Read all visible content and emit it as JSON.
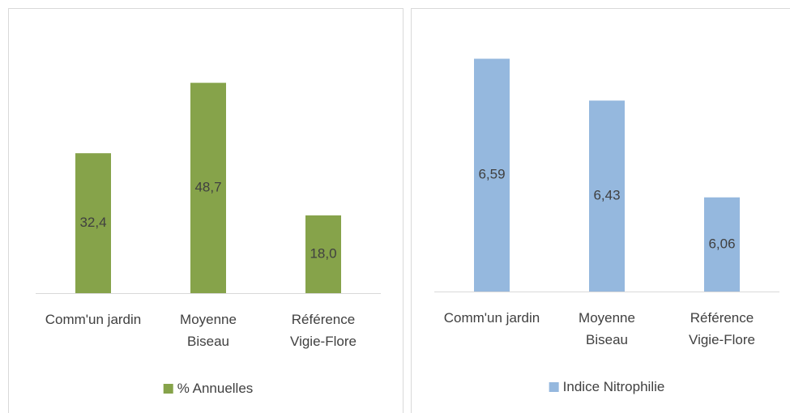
{
  "chart_data": [
    {
      "type": "bar",
      "categories": [
        "Comm'un jardin",
        "Moyenne Biseau",
        "Référence Vigie-Flore"
      ],
      "series": [
        {
          "name": "% Annuelles",
          "color": "#86a34a",
          "values": [
            32.4,
            48.7,
            18.0
          ],
          "value_labels": [
            "32,4",
            "48,7",
            "18,0"
          ]
        }
      ],
      "ylim": [
        0,
        60
      ],
      "legend": "bottom"
    },
    {
      "type": "bar",
      "categories": [
        "Comm'un jardin",
        "Moyenne Biseau",
        "Référence Vigie-Flore"
      ],
      "series": [
        {
          "name": "Indice Nitrophilie",
          "color": "#95b8de",
          "values": [
            6.59,
            6.43,
            6.06
          ],
          "value_labels": [
            "6,59",
            "6,43",
            "6,06"
          ]
        }
      ],
      "ylim": [
        5.7,
        6.7
      ],
      "legend": "bottom"
    }
  ]
}
